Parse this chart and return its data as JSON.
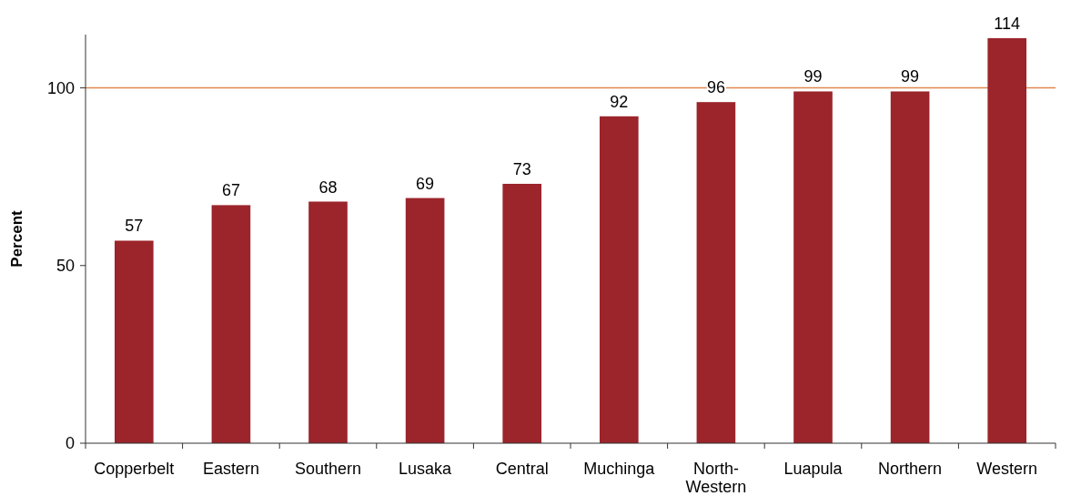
{
  "chart_data": {
    "type": "bar",
    "ylabel": "Percent",
    "categories": [
      "Copperbelt",
      "Eastern",
      "Southern",
      "Lusaka",
      "Central",
      "Muchinga",
      "North-Western",
      "Luapula",
      "Northern",
      "Western"
    ],
    "values": [
      57,
      67,
      68,
      69,
      73,
      92,
      96,
      99,
      99,
      114
    ],
    "color": "#9b252b",
    "ylim": [
      0,
      115
    ],
    "yticks": [
      0,
      50,
      100
    ],
    "grid": false,
    "data_labels": true,
    "ref_lines": [
      {
        "axis": "y",
        "value": 100,
        "color": "#e08850"
      }
    ]
  }
}
